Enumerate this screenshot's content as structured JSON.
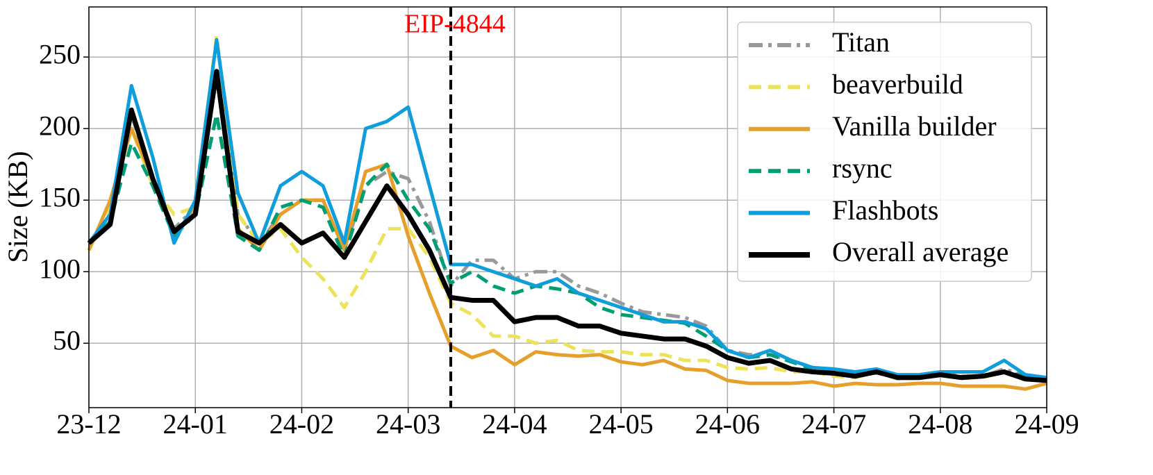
{
  "chart_data": {
    "type": "line",
    "ylabel": "Size (KB)",
    "categories": [
      "23-12",
      null,
      null,
      null,
      null,
      "24-01",
      null,
      null,
      null,
      null,
      "24-02",
      null,
      null,
      null,
      null,
      "24-03",
      null,
      null,
      null,
      null,
      "24-04",
      null,
      null,
      null,
      null,
      "24-05",
      null,
      null,
      null,
      null,
      "24-06",
      null,
      null,
      null,
      null,
      "24-07",
      null,
      null,
      null,
      null,
      "24-08",
      null,
      null,
      null,
      null,
      "24-09"
    ],
    "ylim": [
      5,
      285
    ],
    "yticks": [
      50,
      100,
      150,
      200,
      250
    ],
    "grid": true,
    "legend": "upper right",
    "annotation": {
      "text": "EIP-4844",
      "at_category": 17,
      "color": "#ff0000"
    },
    "series": [
      {
        "name": "Titan",
        "color": "#999999",
        "style": "dashdot",
        "values": [
          120,
          135,
          210,
          160,
          130,
          145,
          240,
          140,
          120,
          140,
          150,
          150,
          115,
          160,
          170,
          165,
          135,
          90,
          108,
          108,
          95,
          100,
          100,
          90,
          85,
          78,
          72,
          70,
          68,
          62,
          45,
          42,
          42,
          38,
          33,
          30,
          28,
          31,
          27,
          27,
          30,
          27,
          27,
          32,
          27,
          25
        ]
      },
      {
        "name": "beaverbuild",
        "color": "#ece35a",
        "style": "dashed",
        "values": [
          115,
          145,
          200,
          160,
          140,
          145,
          265,
          140,
          120,
          130,
          110,
          95,
          75,
          100,
          130,
          130,
          110,
          78,
          70,
          55,
          55,
          50,
          52,
          45,
          44,
          44,
          42,
          42,
          38,
          38,
          33,
          32,
          33,
          30,
          30,
          27,
          26,
          30,
          25,
          26,
          28,
          26,
          26,
          30,
          26,
          24
        ]
      },
      {
        "name": "Vanilla builder",
        "color": "#e69f2a",
        "style": "solid",
        "values": [
          115,
          150,
          200,
          165,
          125,
          145,
          240,
          130,
          115,
          140,
          150,
          150,
          115,
          170,
          175,
          125,
          85,
          48,
          40,
          45,
          35,
          44,
          42,
          41,
          42,
          37,
          35,
          38,
          32,
          31,
          24,
          22,
          22,
          22,
          23,
          20,
          22,
          21,
          21,
          22,
          22,
          20,
          20,
          20,
          18,
          22
        ]
      },
      {
        "name": "rsync",
        "color": "#009e73",
        "style": "dashed",
        "values": [
          120,
          135,
          190,
          160,
          125,
          140,
          210,
          125,
          115,
          145,
          150,
          145,
          110,
          160,
          175,
          150,
          130,
          92,
          100,
          90,
          85,
          90,
          88,
          85,
          75,
          70,
          68,
          66,
          64,
          55,
          45,
          40,
          42,
          37,
          32,
          30,
          30,
          30,
          27,
          27,
          29,
          26,
          27,
          30,
          27,
          25
        ]
      },
      {
        "name": "Flashbots",
        "color": "#0f9ddc",
        "style": "solid",
        "values": [
          120,
          140,
          230,
          180,
          120,
          150,
          262,
          155,
          120,
          160,
          170,
          160,
          120,
          200,
          205,
          215,
          160,
          105,
          105,
          100,
          95,
          90,
          95,
          85,
          80,
          75,
          70,
          65,
          65,
          60,
          45,
          40,
          45,
          38,
          33,
          32,
          30,
          32,
          28,
          28,
          30,
          30,
          30,
          38,
          28,
          26
        ]
      },
      {
        "name": "Overall average",
        "color": "#000000",
        "style": "bold",
        "values": [
          120,
          133,
          213,
          165,
          128,
          140,
          240,
          128,
          120,
          133,
          120,
          127,
          110,
          135,
          160,
          140,
          115,
          82,
          80,
          80,
          65,
          68,
          68,
          62,
          62,
          57,
          55,
          53,
          53,
          48,
          40,
          36,
          38,
          32,
          30,
          29,
          27,
          30,
          26,
          26,
          28,
          26,
          27,
          30,
          25,
          24
        ]
      }
    ]
  }
}
